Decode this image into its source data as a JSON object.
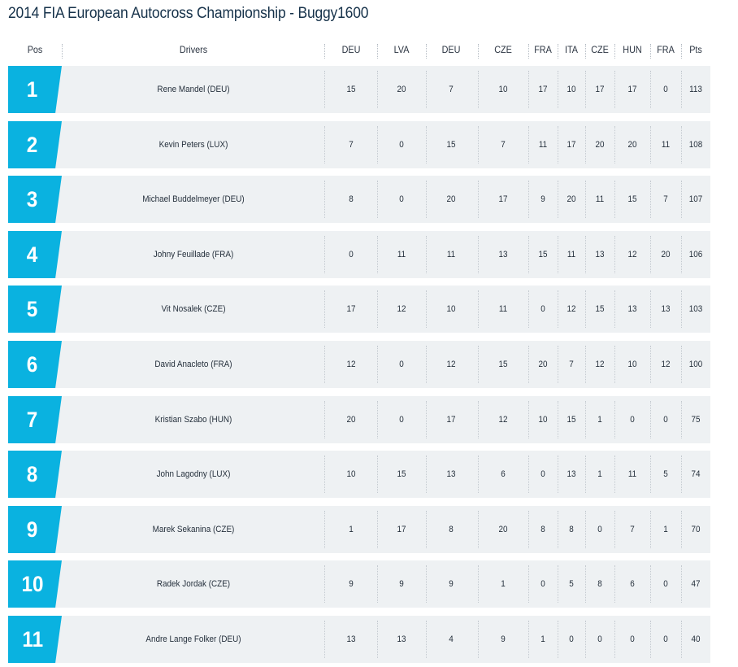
{
  "title": "2014 FIA European Autocross Championship - Buggy1600",
  "headers": {
    "pos": "Pos",
    "drivers": "Drivers",
    "rounds": [
      "DEU",
      "LVA",
      "DEU",
      "CZE",
      "FRA",
      "ITA",
      "CZE",
      "HUN",
      "FRA"
    ],
    "pts": "Pts"
  },
  "colors": {
    "accent": "#0ab2e0",
    "row_bg": "#eef1f3",
    "title": "#16324a"
  },
  "rows": [
    {
      "pos": "1",
      "driver": "Rene Mandel (DEU)",
      "results": [
        "15",
        "20",
        "7",
        "10",
        "17",
        "10",
        "17",
        "17",
        "0"
      ],
      "pts": "113"
    },
    {
      "pos": "2",
      "driver": "Kevin Peters (LUX)",
      "results": [
        "7",
        "0",
        "15",
        "7",
        "11",
        "17",
        "20",
        "20",
        "11"
      ],
      "pts": "108"
    },
    {
      "pos": "3",
      "driver": "Michael Buddelmeyer (DEU)",
      "results": [
        "8",
        "0",
        "20",
        "17",
        "9",
        "20",
        "11",
        "15",
        "7"
      ],
      "pts": "107"
    },
    {
      "pos": "4",
      "driver": "Johny Feuillade (FRA)",
      "results": [
        "0",
        "11",
        "11",
        "13",
        "15",
        "11",
        "13",
        "12",
        "20"
      ],
      "pts": "106"
    },
    {
      "pos": "5",
      "driver": "Vit Nosalek (CZE)",
      "results": [
        "17",
        "12",
        "10",
        "11",
        "0",
        "12",
        "15",
        "13",
        "13"
      ],
      "pts": "103"
    },
    {
      "pos": "6",
      "driver": "David Anacleto (FRA)",
      "results": [
        "12",
        "0",
        "12",
        "15",
        "20",
        "7",
        "12",
        "10",
        "12"
      ],
      "pts": "100"
    },
    {
      "pos": "7",
      "driver": "Kristian Szabo (HUN)",
      "results": [
        "20",
        "0",
        "17",
        "12",
        "10",
        "15",
        "1",
        "0",
        "0"
      ],
      "pts": "75"
    },
    {
      "pos": "8",
      "driver": "John Lagodny (LUX)",
      "results": [
        "10",
        "15",
        "13",
        "6",
        "0",
        "13",
        "1",
        "11",
        "5"
      ],
      "pts": "74"
    },
    {
      "pos": "9",
      "driver": "Marek Sekanina (CZE)",
      "results": [
        "1",
        "17",
        "8",
        "20",
        "8",
        "8",
        "0",
        "7",
        "1"
      ],
      "pts": "70"
    },
    {
      "pos": "10",
      "driver": "Radek Jordak (CZE)",
      "results": [
        "9",
        "9",
        "9",
        "1",
        "0",
        "5",
        "8",
        "6",
        "0"
      ],
      "pts": "47"
    },
    {
      "pos": "11",
      "driver": "Andre Lange Folker (DEU)",
      "results": [
        "13",
        "13",
        "4",
        "9",
        "1",
        "0",
        "0",
        "0",
        "0"
      ],
      "pts": "40"
    }
  ]
}
